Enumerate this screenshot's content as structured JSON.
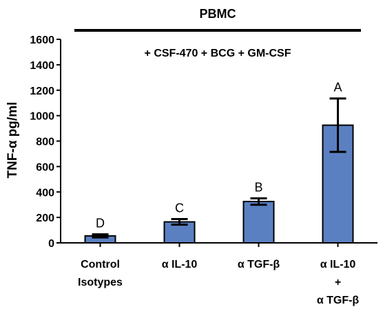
{
  "chart_data": {
    "type": "bar",
    "title": "PBMC",
    "subtitle": "+ CSF-470 + BCG + GM-CSF",
    "ylabel": "TNF-α pg/ml",
    "xlabel": "",
    "ylim": [
      0,
      1600
    ],
    "yticks": [
      "0",
      "200",
      "400",
      "600",
      "800",
      "1000",
      "1200",
      "1400",
      "1600"
    ],
    "categories": [
      [
        "Control",
        "Isotypes"
      ],
      [
        "α IL-10"
      ],
      [
        "α TGF-β"
      ],
      [
        "α IL-10",
        "+",
        "α TGF-β"
      ]
    ],
    "values": [
      55,
      165,
      325,
      925
    ],
    "errors": [
      12,
      22,
      25,
      210
    ],
    "letters": [
      "D",
      "C",
      "B",
      "A"
    ],
    "bar_color": "#5b80c2",
    "grid": false,
    "legend": "none"
  }
}
